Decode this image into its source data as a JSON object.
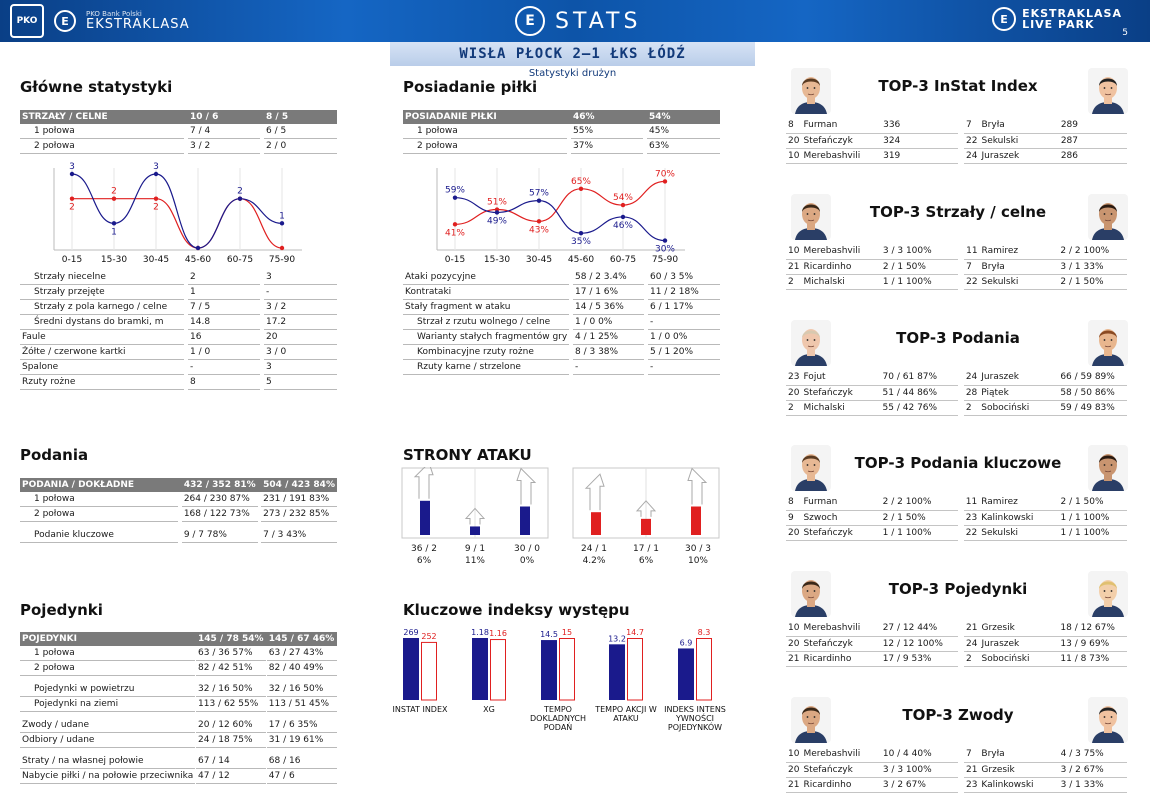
{
  "header": {
    "pko": "PKO",
    "ek_small": "PKO Bank Polski",
    "ek_big": "EKSTRAKLASA",
    "stats": "STATS",
    "right_top": "EKSTRAKLASA",
    "right_bottom": "LIVE PARK",
    "page": "5"
  },
  "match": "WISŁA PŁOCK 2–1 ŁKS ŁÓDŹ",
  "subtitle": "Statystyki drużyn",
  "glowne": {
    "title": "Główne statystyki",
    "head": [
      "STRZAŁY / CELNE",
      "10 / 6",
      "8 / 5"
    ],
    "halves": [
      [
        "1 połowa",
        "7 / 4",
        "6 / 5"
      ],
      [
        "2 połowa",
        "3 / 2",
        "2 / 0"
      ]
    ],
    "rows": [
      [
        "Strzały niecelne",
        "2",
        "3"
      ],
      [
        "Strzały przejęte",
        "1",
        "-"
      ],
      [
        "Strzały z pola karnego / celne",
        "7 / 5",
        "3 / 2"
      ],
      [
        "Średni dystans do bramki, m",
        "14.8",
        "17.2"
      ],
      [
        "Faule",
        "16",
        "20"
      ],
      [
        "Żółte / czerwone kartki",
        "1 / 0",
        "3 / 0"
      ],
      [
        "Spalone",
        "-",
        "3"
      ],
      [
        "Rzuty rożne",
        "8",
        "5"
      ]
    ],
    "indent": [
      true,
      true,
      true,
      true,
      false,
      false,
      false,
      false
    ]
  },
  "chart_shots": {
    "type": "line",
    "categories": [
      "0-15",
      "15-30",
      "30-45",
      "45-60",
      "60-75",
      "75-90"
    ],
    "series": [
      {
        "values": [
          3,
          1,
          3,
          0,
          2,
          1
        ]
      },
      {
        "values": [
          2,
          2,
          2,
          0,
          2,
          0
        ]
      }
    ],
    "ylim": [
      0,
      3
    ],
    "labels_blue": [
      "3",
      "1",
      "3",
      "",
      "2",
      "1"
    ],
    "labels_red": [
      "2",
      "2",
      "2",
      "",
      "",
      ""
    ],
    "colors": [
      "#1a1a8c",
      "#e02020"
    ]
  },
  "posiadanie": {
    "title": "Posiadanie piłki",
    "head": [
      "POSIADANIE PIŁKI",
      "46%",
      "54%"
    ],
    "halves": [
      [
        "1 połowa",
        "55%",
        "45%"
      ],
      [
        "2 połowa",
        "37%",
        "63%"
      ]
    ],
    "rows": [
      [
        "Ataki pozycyjne",
        "58 / 2 3.4%",
        "60 / 3 5%"
      ],
      [
        "Kontrataki",
        "17 / 1 6%",
        "11 / 2 18%"
      ],
      [
        "Stały fragment w ataku",
        "14 / 5 36%",
        "6 / 1   17%"
      ],
      [
        "Strzał z rzutu wolnego / celne",
        "1 / 0   0%",
        "-"
      ],
      [
        "Warianty stałych fragmentów gry",
        "4 / 1   25%",
        "1 / 0   0%"
      ],
      [
        "Kombinacyjne rzuty rożne",
        "8 / 3   38%",
        "5 / 1   20%"
      ],
      [
        "Rzuty karne /  strzelone",
        "-",
        "-"
      ]
    ],
    "indent": [
      false,
      false,
      false,
      true,
      true,
      true,
      true
    ]
  },
  "chart_poss": {
    "type": "line",
    "categories": [
      "0-15",
      "15-30",
      "30-45",
      "45-60",
      "60-75",
      "75-90"
    ],
    "series": [
      {
        "values": [
          59,
          49,
          57,
          35,
          46,
          30
        ]
      },
      {
        "values": [
          41,
          51,
          43,
          65,
          54,
          70
        ]
      }
    ],
    "ylim": [
      25,
      75
    ],
    "labels_blue": [
      "59%",
      "49%",
      "57%",
      "35%",
      "46%",
      "30%"
    ],
    "labels_red": [
      "41%",
      "51%",
      "43%",
      "65%",
      "54%",
      "70%"
    ],
    "colors": [
      "#1a1a8c",
      "#e02020"
    ]
  },
  "podania": {
    "title": "Podania",
    "head": [
      "PODANIA / DOKŁADNE",
      "432 / 352 81%",
      "504 / 423 84%"
    ],
    "rows": [
      [
        "1 połowa",
        "264 / 230 87%",
        "231 / 191 83%"
      ],
      [
        "2 połowa",
        "168 / 122 73%",
        "273 / 232 85%"
      ],
      [
        "",
        "",
        ""
      ],
      [
        "Podanie kluczowe",
        "9 / 7      78%",
        "7 / 3      43%"
      ]
    ]
  },
  "strony": {
    "title": "STRONY ATAKU",
    "left": [
      [
        "36 / 2",
        "6%"
      ],
      [
        "9 / 1",
        "11%"
      ],
      [
        "30 / 0",
        "0%"
      ]
    ],
    "right": [
      [
        "24 / 1",
        "4.2%"
      ],
      [
        "17 / 1",
        "6%"
      ],
      [
        "30 / 3",
        "10%"
      ]
    ],
    "left_vals": [
      36,
      9,
      30
    ],
    "right_vals": [
      24,
      17,
      30
    ]
  },
  "pojedynki": {
    "title": "Pojedynki",
    "head": [
      "POJEDYNKI",
      "145 / 78 54%",
      "145 / 67 46%"
    ],
    "rows": [
      [
        "1 połowa",
        "63 / 36   57%",
        "63 / 27   43%"
      ],
      [
        "2 połowa",
        "82 / 42   51%",
        "82 / 40   49%"
      ],
      [
        "",
        "",
        ""
      ],
      [
        "Pojedynki w powietrzu",
        "32 / 16   50%",
        "32 / 16   50%"
      ],
      [
        "Pojedynki na ziemi",
        "113 / 62 55%",
        "113 / 51 45%"
      ],
      [
        "",
        "",
        ""
      ],
      [
        "Zwody / udane",
        "20 / 12  60%",
        "17 / 6     35%"
      ],
      [
        "Odbiory / udane",
        "24 / 18  75%",
        "31 / 19   61%"
      ],
      [
        "",
        "",
        ""
      ],
      [
        "Straty / na własnej połowie",
        "67 / 14",
        "68 / 16"
      ],
      [
        "Nabycie piłki / na połowie przeciwnika",
        "47 / 12",
        "47 / 6"
      ]
    ],
    "indent": [
      true,
      true,
      false,
      true,
      true,
      false,
      false,
      false,
      false,
      false,
      false
    ]
  },
  "kluczowe": {
    "title": "Kluczowe indeksy występu",
    "items": [
      {
        "label": "INSTAT INDEX",
        "a": "269",
        "b": "252",
        "va": 269,
        "vb": 252
      },
      {
        "label": "XG",
        "a": "1.18",
        "b": "1.16",
        "va": 1.18,
        "vb": 1.16
      },
      {
        "label": "TEMPO DOKLADNYCH PODAŃ",
        "a": "14.5",
        "b": "15",
        "va": 14.5,
        "vb": 15
      },
      {
        "label": "TEMPO AKCJI W ATAKU",
        "a": "13.2",
        "b": "14.7",
        "va": 13.2,
        "vb": 14.7
      },
      {
        "label": "INDEKS INTENS YWNOŚCI POJEDYNKÓW",
        "a": "6.9",
        "b": "8.3",
        "va": 6.9,
        "vb": 8.3
      }
    ]
  },
  "tops": [
    {
      "title": "TOP-3 InStat Index",
      "left": [
        [
          "8",
          "Furman",
          "336"
        ],
        [
          "20",
          "Stefańczyk",
          "324"
        ],
        [
          "10",
          "Merebashvili",
          "319"
        ]
      ],
      "right": [
        [
          "7",
          "Bryła",
          "289"
        ],
        [
          "22",
          "Sekulski",
          "287"
        ],
        [
          "24",
          "Juraszek",
          "286"
        ]
      ]
    },
    {
      "title": "TOP-3 Strzały / celne",
      "left": [
        [
          "10",
          "Merebashvili",
          "3 / 3  100%"
        ],
        [
          "21",
          "Ricardinho",
          "2 / 1  50%"
        ],
        [
          "2",
          "Michalski",
          "1 / 1  100%"
        ]
      ],
      "right": [
        [
          "11",
          "Ramirez",
          "2 / 2  100%"
        ],
        [
          "7",
          "Bryła",
          "3 / 1  33%"
        ],
        [
          "22",
          "Sekulski",
          "2 / 1  50%"
        ]
      ]
    },
    {
      "title": "TOP-3 Podania",
      "left": [
        [
          "23",
          "Fojut",
          "70 / 61 87%"
        ],
        [
          "20",
          "Stefańczyk",
          "51 / 44 86%"
        ],
        [
          "2",
          "Michalski",
          "55 / 42 76%"
        ]
      ],
      "right": [
        [
          "24",
          "Juraszek",
          "66 / 59 89%"
        ],
        [
          "28",
          "Piątek",
          "58 / 50 86%"
        ],
        [
          "2",
          "Sobociński",
          "59 / 49 83%"
        ]
      ]
    },
    {
      "title": "TOP-3 Podania kluczowe",
      "left": [
        [
          "8",
          "Furman",
          "2 / 2  100%"
        ],
        [
          "9",
          "Szwoch",
          "2 / 1  50%"
        ],
        [
          "20",
          "Stefańczyk",
          "1 / 1  100%"
        ]
      ],
      "right": [
        [
          "11",
          "Ramirez",
          "2 / 1  50%"
        ],
        [
          "23",
          "Kalinkowski",
          "1 / 1  100%"
        ],
        [
          "22",
          "Sekulski",
          "1 / 1  100%"
        ]
      ]
    },
    {
      "title": "TOP-3 Pojedynki",
      "left": [
        [
          "10",
          "Merebashvili",
          "27 / 12 44%"
        ],
        [
          "20",
          "Stefańczyk",
          "12 / 12 100%"
        ],
        [
          "21",
          "Ricardinho",
          "17 / 9   53%"
        ]
      ],
      "right": [
        [
          "21",
          "Grzesik",
          "18 / 12 67%"
        ],
        [
          "24",
          "Juraszek",
          "13 / 9   69%"
        ],
        [
          "2",
          "Sobociński",
          "11 / 8   73%"
        ]
      ]
    },
    {
      "title": "TOP-3 Zwody",
      "left": [
        [
          "10",
          "Merebashvili",
          "10 / 4  40%"
        ],
        [
          "20",
          "Stefańczyk",
          "3 / 3    100%"
        ],
        [
          "21",
          "Ricardinho",
          "3 / 2    67%"
        ]
      ],
      "right": [
        [
          "7",
          "Bryła",
          "4 / 3  75%"
        ],
        [
          "21",
          "Grzesik",
          "3 / 2  67%"
        ],
        [
          "23",
          "Kalinkowski",
          "3 / 1  33%"
        ]
      ]
    }
  ]
}
